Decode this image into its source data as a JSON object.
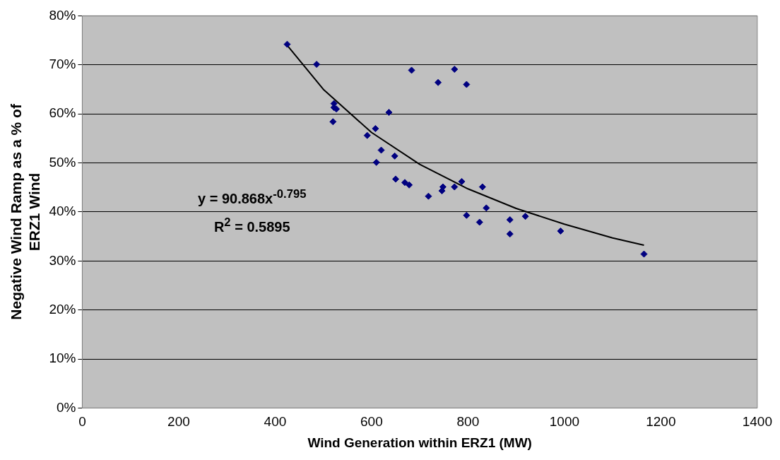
{
  "chart_data": {
    "type": "scatter",
    "xlabel": "Wind Generation within ERZ1 (MW)",
    "ylabel": "Negative Wind Ramp as a % of ERZ1 Wind",
    "xlim": [
      0,
      1400
    ],
    "xticks": [
      0,
      200,
      400,
      600,
      800,
      1000,
      1200,
      1400
    ],
    "ylim": [
      0,
      80
    ],
    "yticks": [
      {
        "value": 0,
        "label": "0%"
      },
      {
        "value": 10,
        "label": "10%"
      },
      {
        "value": 20,
        "label": "20%"
      },
      {
        "value": 30,
        "label": "30%"
      },
      {
        "value": 40,
        "label": "40%"
      },
      {
        "value": 50,
        "label": "50%"
      },
      {
        "value": 60,
        "label": "60%"
      },
      {
        "value": 70,
        "label": "70%"
      },
      {
        "value": 80,
        "label": "80%"
      }
    ],
    "grid": "y",
    "legend": false,
    "marker": "diamond",
    "series": [
      {
        "type": "scatter",
        "color": "#000080",
        "x": [
          425,
          486,
          683,
          772,
          738,
          797,
          522,
          522,
          527,
          636,
          520,
          608,
          591,
          620,
          648,
          610,
          650,
          669,
          678,
          718,
          748,
          746,
          772,
          787,
          830,
          838,
          797,
          824,
          887,
          887,
          919,
          992,
          1165
        ],
        "values": [
          74.2,
          70.1,
          68.9,
          69.1,
          66.4,
          66.0,
          62.1,
          61.3,
          61.0,
          60.3,
          58.4,
          57.0,
          55.6,
          52.6,
          51.4,
          50.1,
          46.7,
          46.0,
          45.5,
          43.2,
          45.1,
          44.3,
          45.1,
          46.2,
          45.1,
          40.8,
          39.3,
          37.9,
          38.4,
          35.5,
          39.1,
          36.1,
          31.4
        ]
      },
      {
        "type": "line",
        "color": "#000000",
        "marker": "none",
        "x": [
          425,
          500,
          600,
          700,
          800,
          900,
          1000,
          1100,
          1165
        ],
        "values": [
          74.0,
          65.0,
          56.2,
          49.7,
          44.7,
          40.7,
          37.5,
          34.7,
          33.2
        ]
      }
    ],
    "annotations": [
      "y = 90.868x$^{-0.795}$",
      "R$^{2}$ = 0.5895"
    ]
  }
}
